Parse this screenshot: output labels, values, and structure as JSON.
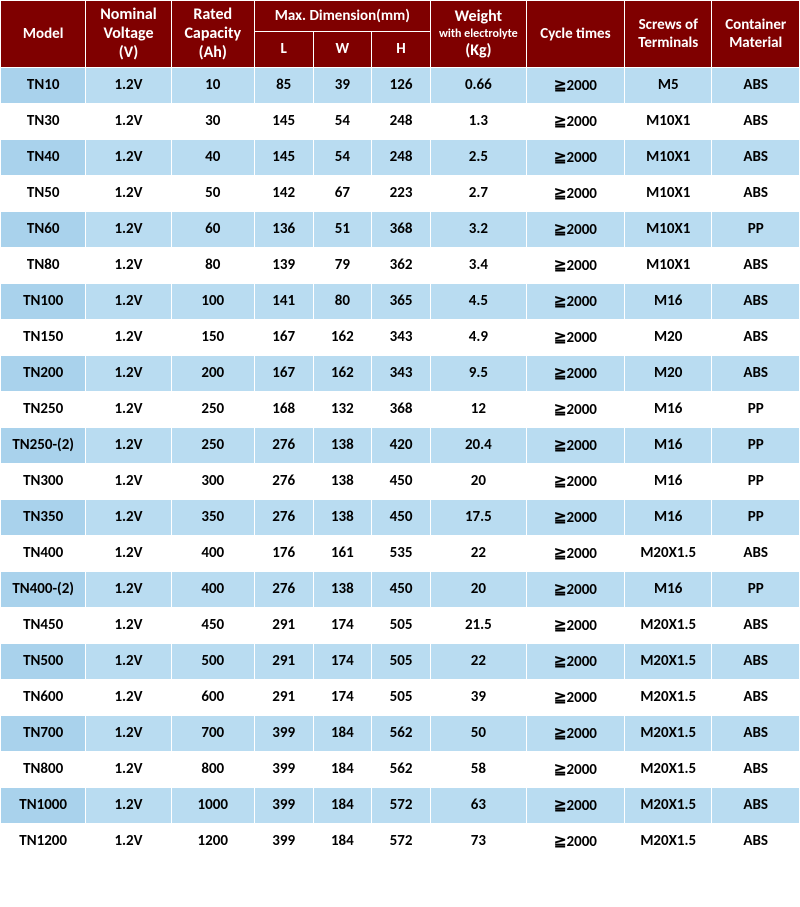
{
  "header": {
    "model": "Model",
    "voltage_main": "Nominal Voltage",
    "voltage_unit": "(V)",
    "capacity_main": "Rated Capacity",
    "capacity_unit": "(Ah)",
    "dimension": "Max. Dimension(mm)",
    "dim_l": "L",
    "dim_w": "W",
    "dim_h": "H",
    "weight_main": "Weight",
    "weight_sub": "with electrolyte",
    "weight_unit": "(Kg)",
    "cycle": "Cycle times",
    "screws": "Screws of Terminals",
    "material": "Container Material"
  },
  "colors": {
    "header_bg": "#7f0000",
    "header_text": "#ffffff",
    "row_light": "#b9dcf1",
    "row_white": "#ffffff",
    "model_light": "#a9d2ec",
    "text": "#000000",
    "border": "#ffffff"
  },
  "columns": [
    "model",
    "voltage",
    "capacity",
    "l",
    "w",
    "h",
    "weight",
    "cycle",
    "screw",
    "material"
  ],
  "rows": [
    {
      "model": "TN10",
      "voltage": "1.2V",
      "capacity": "10",
      "l": "85",
      "w": "39",
      "h": "126",
      "weight": "0.66",
      "cycle": "≧2000",
      "screw": "M5",
      "material": "ABS"
    },
    {
      "model": "TN30",
      "voltage": "1.2V",
      "capacity": "30",
      "l": "145",
      "w": "54",
      "h": "248",
      "weight": "1.3",
      "cycle": "≧2000",
      "screw": "M10X1",
      "material": "ABS"
    },
    {
      "model": "TN40",
      "voltage": "1.2V",
      "capacity": "40",
      "l": "145",
      "w": "54",
      "h": "248",
      "weight": "2.5",
      "cycle": "≧2000",
      "screw": "M10X1",
      "material": "ABS"
    },
    {
      "model": "TN50",
      "voltage": "1.2V",
      "capacity": "50",
      "l": "142",
      "w": "67",
      "h": "223",
      "weight": "2.7",
      "cycle": "≧2000",
      "screw": "M10X1",
      "material": "ABS"
    },
    {
      "model": "TN60",
      "voltage": "1.2V",
      "capacity": "60",
      "l": "136",
      "w": "51",
      "h": "368",
      "weight": "3.2",
      "cycle": "≧2000",
      "screw": "M10X1",
      "material": "PP"
    },
    {
      "model": "TN80",
      "voltage": "1.2V",
      "capacity": "80",
      "l": "139",
      "w": "79",
      "h": "362",
      "weight": "3.4",
      "cycle": "≧2000",
      "screw": "M10X1",
      "material": "ABS"
    },
    {
      "model": "TN100",
      "voltage": "1.2V",
      "capacity": "100",
      "l": "141",
      "w": "80",
      "h": "365",
      "weight": "4.5",
      "cycle": "≧2000",
      "screw": "M16",
      "material": "ABS"
    },
    {
      "model": "TN150",
      "voltage": "1.2V",
      "capacity": "150",
      "l": "167",
      "w": "162",
      "h": "343",
      "weight": "4.9",
      "cycle": "≧2000",
      "screw": "M20",
      "material": "ABS"
    },
    {
      "model": "TN200",
      "voltage": "1.2V",
      "capacity": "200",
      "l": "167",
      "w": "162",
      "h": "343",
      "weight": "9.5",
      "cycle": "≧2000",
      "screw": "M20",
      "material": "ABS"
    },
    {
      "model": "TN250",
      "voltage": "1.2V",
      "capacity": "250",
      "l": "168",
      "w": "132",
      "h": "368",
      "weight": "12",
      "cycle": "≧2000",
      "screw": "M16",
      "material": "PP"
    },
    {
      "model": "TN250-(2)",
      "voltage": "1.2V",
      "capacity": "250",
      "l": "276",
      "w": "138",
      "h": "420",
      "weight": "20.4",
      "cycle": "≧2000",
      "screw": "M16",
      "material": "PP"
    },
    {
      "model": "TN300",
      "voltage": "1.2V",
      "capacity": "300",
      "l": "276",
      "w": "138",
      "h": "450",
      "weight": "20",
      "cycle": "≧2000",
      "screw": "M16",
      "material": "PP"
    },
    {
      "model": "TN350",
      "voltage": "1.2V",
      "capacity": "350",
      "l": "276",
      "w": "138",
      "h": "450",
      "weight": "17.5",
      "cycle": "≧2000",
      "screw": "M16",
      "material": "PP"
    },
    {
      "model": "TN400",
      "voltage": "1.2V",
      "capacity": "400",
      "l": "176",
      "w": "161",
      "h": "535",
      "weight": "22",
      "cycle": "≧2000",
      "screw": "M20X1.5",
      "material": "ABS"
    },
    {
      "model": "TN400-(2)",
      "voltage": "1.2V",
      "capacity": "400",
      "l": "276",
      "w": "138",
      "h": "450",
      "weight": "20",
      "cycle": "≧2000",
      "screw": "M16",
      "material": "PP"
    },
    {
      "model": "TN450",
      "voltage": "1.2V",
      "capacity": "450",
      "l": "291",
      "w": "174",
      "h": "505",
      "weight": "21.5",
      "cycle": "≧2000",
      "screw": "M20X1.5",
      "material": "ABS"
    },
    {
      "model": "TN500",
      "voltage": "1.2V",
      "capacity": "500",
      "l": "291",
      "w": "174",
      "h": "505",
      "weight": "22",
      "cycle": "≧2000",
      "screw": "M20X1.5",
      "material": "ABS"
    },
    {
      "model": "TN600",
      "voltage": "1.2V",
      "capacity": "600",
      "l": "291",
      "w": "174",
      "h": "505",
      "weight": "39",
      "cycle": "≧2000",
      "screw": "M20X1.5",
      "material": "ABS"
    },
    {
      "model": "TN700",
      "voltage": "1.2V",
      "capacity": "700",
      "l": "399",
      "w": "184",
      "h": "562",
      "weight": "50",
      "cycle": "≧2000",
      "screw": "M20X1.5",
      "material": "ABS"
    },
    {
      "model": "TN800",
      "voltage": "1.2V",
      "capacity": "800",
      "l": "399",
      "w": "184",
      "h": "562",
      "weight": "58",
      "cycle": "≧2000",
      "screw": "M20X1.5",
      "material": "ABS"
    },
    {
      "model": "TN1000",
      "voltage": "1.2V",
      "capacity": "1000",
      "l": "399",
      "w": "184",
      "h": "572",
      "weight": "63",
      "cycle": "≧2000",
      "screw": "M20X1.5",
      "material": "ABS"
    },
    {
      "model": "TN1200",
      "voltage": "1.2V",
      "capacity": "1200",
      "l": "399",
      "w": "184",
      "h": "572",
      "weight": "73",
      "cycle": "≧2000",
      "screw": "M20X1.5",
      "material": "ABS"
    }
  ]
}
